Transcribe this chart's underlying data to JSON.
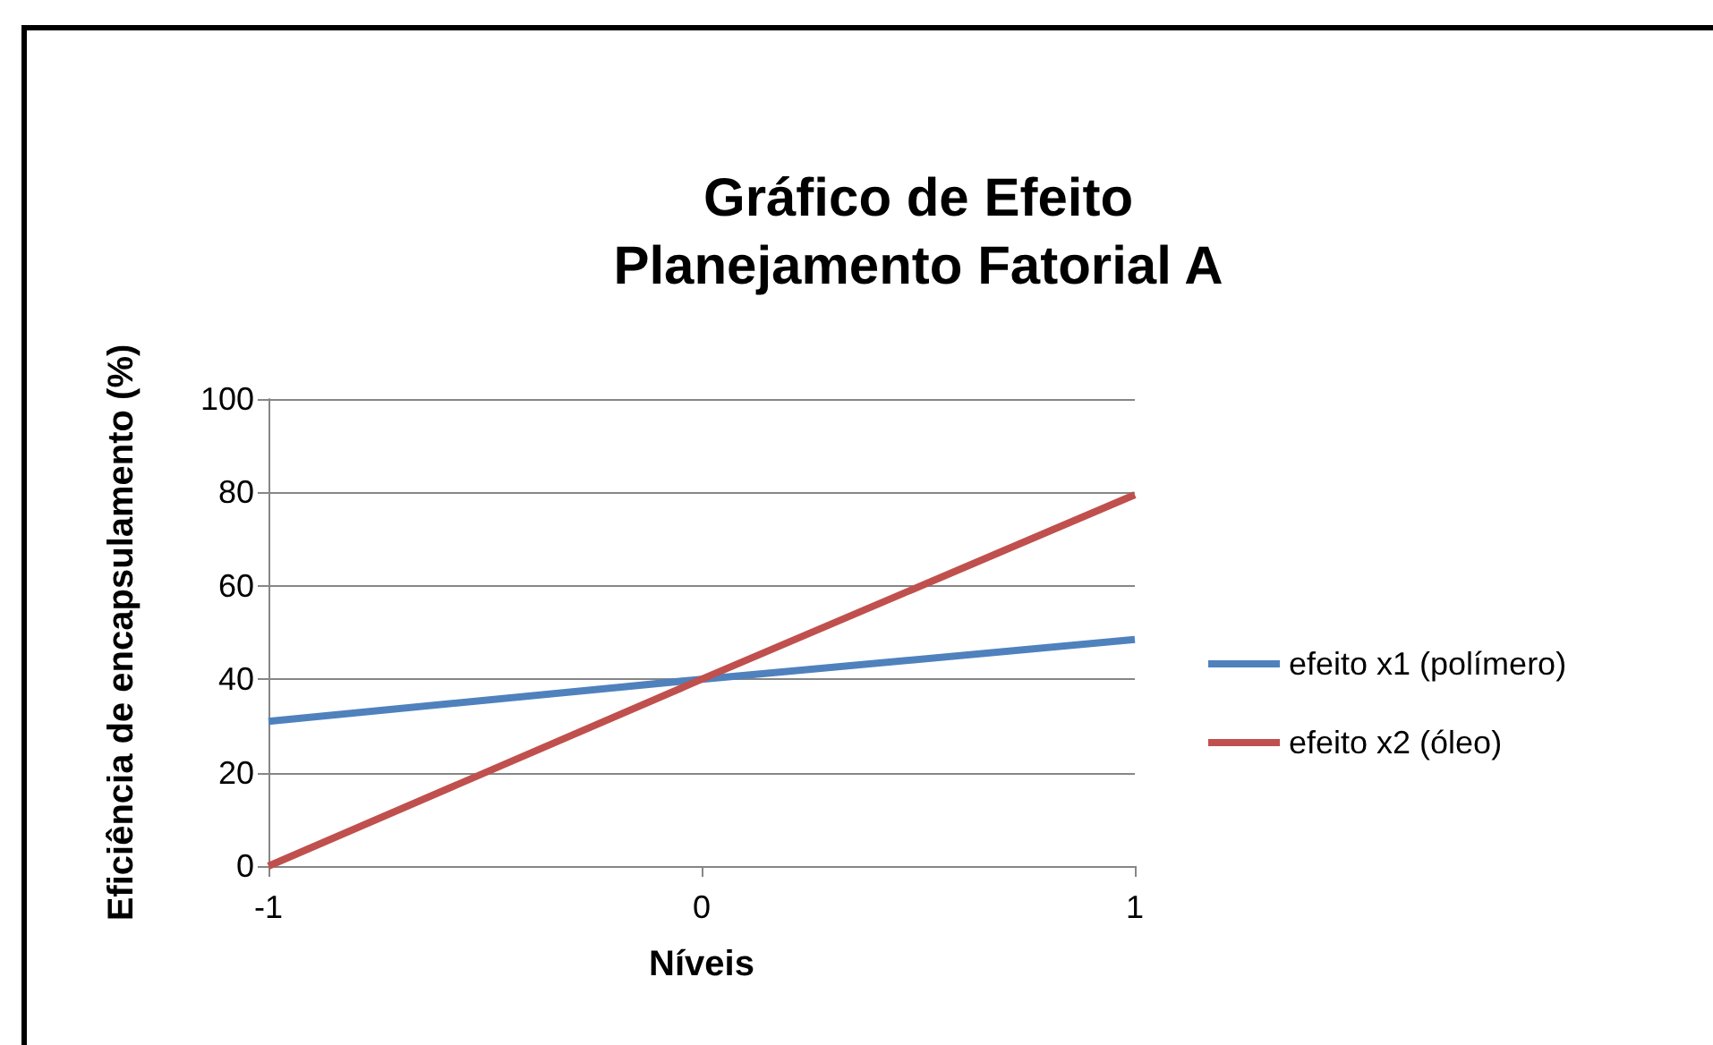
{
  "chart_data": {
    "type": "line",
    "title": "Gráfico de Efeito\nPlanejamento Fatorial A",
    "xlabel": "Níveis",
    "ylabel": "Eficiência de encapsulamento (%)",
    "categories": [
      "-1",
      "0",
      "1"
    ],
    "series": [
      {
        "name": "efeito x1 (polímero)",
        "color": "#4f81bd",
        "values": [
          31,
          40,
          48.5
        ]
      },
      {
        "name": "efeito x2 (óleo)",
        "color": "#c0504d",
        "values": [
          0,
          40,
          79.5
        ]
      }
    ],
    "ylim": [
      0,
      100
    ],
    "yticks": [
      0,
      20,
      40,
      60,
      80,
      100
    ],
    "grid": "y",
    "legend": "right",
    "marker": "none"
  }
}
